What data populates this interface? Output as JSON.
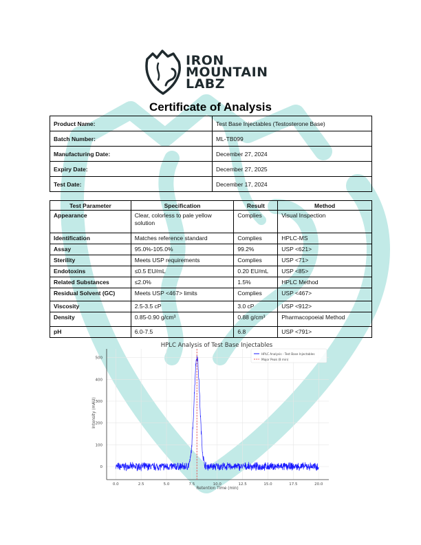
{
  "header": {
    "logo_lines": [
      "IRON",
      "MOUNTAIN",
      "LABZ"
    ],
    "title": "Certificate of Analysis"
  },
  "product_info": [
    {
      "label": "Product Name:",
      "value": "Test Base Injectables (Testosterone Base)"
    },
    {
      "label": "Batch Number:",
      "value": "ML-TB099"
    },
    {
      "label": "Manufacturing Date:",
      "value": "December 27, 2024"
    },
    {
      "label": "Expiry Date:",
      "value": "December 27, 2025"
    },
    {
      "label": "Test Date:",
      "value": "December 17, 2024"
    }
  ],
  "tests": {
    "headers": [
      "Test Parameter",
      "Specification",
      "Result",
      "Method"
    ],
    "rows": [
      {
        "parameter": "Appearance",
        "specification": "Clear, colorless to pale yellow solution",
        "result": "Complies",
        "method": "Visual Inspection"
      },
      {
        "parameter": "Identification",
        "specification": "Matches reference standard",
        "result": "Complies",
        "method": "HPLC-MS"
      },
      {
        "parameter": "Assay",
        "specification": "95.0%-105.0%",
        "result": "99.2%",
        "method": "USP <621>"
      },
      {
        "parameter": "Sterility",
        "specification": "Meets USP requirements",
        "result": "Complies",
        "method": "USP <71>"
      },
      {
        "parameter": "Endotoxins",
        "specification": "≤0.5 EU/mL",
        "result": "0.20 EU/mL",
        "method": "USP <85>"
      },
      {
        "parameter": "Related Substances",
        "specification": "≤2.0%",
        "result": "1.5%",
        "method": "HPLC Method"
      },
      {
        "parameter": "Residual Solvent (GC)",
        "specification": "Meets USP <467> limits",
        "result": "Complies",
        "method": "USP <467>"
      },
      {
        "parameter": "Viscosity",
        "specification": "2.5-3.5 cP",
        "result": "3.0 cP",
        "method": "USP <912>"
      },
      {
        "parameter": "Density",
        "specification": "0.85-0.90 g/cm³",
        "result": "0.88 g/cm³",
        "method": "Pharmacopoeial Method"
      },
      {
        "parameter": "pH",
        "specification": "6.0-7.5",
        "result": "6.8",
        "method": "USP <791>"
      }
    ]
  },
  "colors": {
    "watermark": "#bfe9e6",
    "trace": "#1a1aff",
    "peak_line": "#e06060",
    "logo": "#1f2a2e"
  },
  "chart_data": {
    "type": "line",
    "title": "HPLC Analysis of Test Base Injectables",
    "xlabel": "Retention Time (min)",
    "ylabel": "Intensity (mAU)",
    "xlim": [
      -0.9,
      21
    ],
    "ylim": [
      -60,
      540
    ],
    "xticks": [
      0.0,
      2.5,
      5.0,
      7.5,
      10.0,
      12.5,
      15.0,
      17.5,
      20.0
    ],
    "xtick_labels": [
      "0.0",
      "2.5",
      "5.0",
      "7.5",
      "10.0",
      "12.5",
      "15.0",
      "17.5",
      "20.0"
    ],
    "yticks": [
      0,
      100,
      200,
      300,
      400,
      500
    ],
    "ytick_labels": [
      "0",
      "100",
      "200",
      "300",
      "400",
      "500"
    ],
    "grid": true,
    "legend_position": "upper right",
    "series": [
      {
        "name": "HPLC Analysis - Test Base Injectables",
        "style": "solid",
        "color": "#1a1aff",
        "description": "Noisy baseline around 0 (±~20 mAU) with a single Gaussian peak centered at 8 min",
        "x": [
          0,
          2.5,
          5.0,
          7.0,
          7.5,
          7.8,
          8.0,
          8.2,
          8.5,
          9.0,
          10.0,
          12.5,
          15.0,
          17.5,
          20.0
        ],
        "values": [
          0,
          0,
          0,
          30,
          200,
          430,
          505,
          430,
          200,
          20,
          0,
          0,
          0,
          0,
          0
        ]
      },
      {
        "name": "Major Peak (8 min)",
        "style": "dashed",
        "color": "#e06060",
        "x_vertical": 8.0
      }
    ],
    "annotations": []
  }
}
